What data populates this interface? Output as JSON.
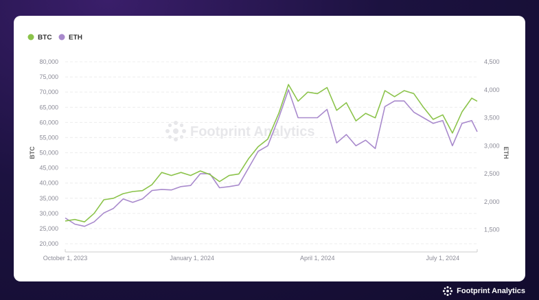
{
  "chart_data": {
    "type": "line",
    "title": "",
    "xlabel": "",
    "ylabel": "BTC",
    "y2label": "ETH",
    "legend_position": "top-left",
    "grid": true,
    "ylim": [
      20000,
      80000
    ],
    "y2lim": [
      1250,
      4500
    ],
    "y_ticks": [
      "20,000",
      "25,000",
      "30,000",
      "35,000",
      "40,000",
      "45,000",
      "50,000",
      "55,000",
      "60,000",
      "65,000",
      "70,000",
      "75,000",
      "80,000"
    ],
    "y2_ticks": [
      "1,500",
      "2,000",
      "2,500",
      "3,000",
      "3,500",
      "4,000",
      "4,500"
    ],
    "x_ticks": [
      "October 1, 2023",
      "January 1, 2024",
      "April 1, 2024",
      "July 1, 2024"
    ],
    "x_tick_dates": [
      "2023-10-01",
      "2024-01-01",
      "2024-04-01",
      "2024-07-01"
    ],
    "x_range": [
      "2023-10-01",
      "2024-07-26"
    ],
    "series": [
      {
        "name": "BTC",
        "axis": "left",
        "color": "#8bc34a",
        "points": [
          [
            "2023-10-01",
            27500
          ],
          [
            "2023-10-08",
            28000
          ],
          [
            "2023-10-15",
            27200
          ],
          [
            "2023-10-22",
            30000
          ],
          [
            "2023-10-29",
            34500
          ],
          [
            "2023-11-05",
            35000
          ],
          [
            "2023-11-12",
            36500
          ],
          [
            "2023-11-19",
            37200
          ],
          [
            "2023-11-26",
            37500
          ],
          [
            "2023-12-03",
            39500
          ],
          [
            "2023-12-10",
            43500
          ],
          [
            "2023-12-17",
            42500
          ],
          [
            "2023-12-24",
            43500
          ],
          [
            "2023-12-31",
            42500
          ],
          [
            "2024-01-07",
            44000
          ],
          [
            "2024-01-14",
            42800
          ],
          [
            "2024-01-21",
            40500
          ],
          [
            "2024-01-28",
            42500
          ],
          [
            "2024-02-04",
            43000
          ],
          [
            "2024-02-11",
            48000
          ],
          [
            "2024-02-18",
            52000
          ],
          [
            "2024-02-25",
            54500
          ],
          [
            "2024-03-04",
            63000
          ],
          [
            "2024-03-11",
            72500
          ],
          [
            "2024-03-18",
            67000
          ],
          [
            "2024-03-25",
            70000
          ],
          [
            "2024-04-01",
            69500
          ],
          [
            "2024-04-08",
            71500
          ],
          [
            "2024-04-15",
            64000
          ],
          [
            "2024-04-22",
            66500
          ],
          [
            "2024-04-29",
            60500
          ],
          [
            "2024-05-06",
            63000
          ],
          [
            "2024-05-13",
            61500
          ],
          [
            "2024-05-20",
            70500
          ],
          [
            "2024-05-27",
            68500
          ],
          [
            "2024-06-03",
            70500
          ],
          [
            "2024-06-10",
            69500
          ],
          [
            "2024-06-17",
            65000
          ],
          [
            "2024-06-24",
            61000
          ],
          [
            "2024-07-01",
            62500
          ],
          [
            "2024-07-08",
            56500
          ],
          [
            "2024-07-15",
            63500
          ],
          [
            "2024-07-22",
            68000
          ],
          [
            "2024-07-26",
            67000
          ]
        ]
      },
      {
        "name": "ETH",
        "axis": "right",
        "color": "#a889cc",
        "points": [
          [
            "2023-10-01",
            1710
          ],
          [
            "2023-10-08",
            1600
          ],
          [
            "2023-10-15",
            1560
          ],
          [
            "2023-10-22",
            1640
          ],
          [
            "2023-10-29",
            1800
          ],
          [
            "2023-11-05",
            1880
          ],
          [
            "2023-11-12",
            2050
          ],
          [
            "2023-11-19",
            1990
          ],
          [
            "2023-11-26",
            2050
          ],
          [
            "2023-12-03",
            2200
          ],
          [
            "2023-12-10",
            2220
          ],
          [
            "2023-12-17",
            2210
          ],
          [
            "2023-12-24",
            2270
          ],
          [
            "2023-12-31",
            2290
          ],
          [
            "2024-01-07",
            2500
          ],
          [
            "2024-01-14",
            2500
          ],
          [
            "2024-01-21",
            2250
          ],
          [
            "2024-01-28",
            2270
          ],
          [
            "2024-02-04",
            2300
          ],
          [
            "2024-02-11",
            2600
          ],
          [
            "2024-02-18",
            2900
          ],
          [
            "2024-02-25",
            3000
          ],
          [
            "2024-03-04",
            3500
          ],
          [
            "2024-03-11",
            4000
          ],
          [
            "2024-03-18",
            3500
          ],
          [
            "2024-03-25",
            3500
          ],
          [
            "2024-04-01",
            3500
          ],
          [
            "2024-04-08",
            3650
          ],
          [
            "2024-04-15",
            3050
          ],
          [
            "2024-04-22",
            3200
          ],
          [
            "2024-04-29",
            3000
          ],
          [
            "2024-05-06",
            3100
          ],
          [
            "2024-05-13",
            2950
          ],
          [
            "2024-05-20",
            3700
          ],
          [
            "2024-05-27",
            3800
          ],
          [
            "2024-06-03",
            3800
          ],
          [
            "2024-06-10",
            3600
          ],
          [
            "2024-06-17",
            3500
          ],
          [
            "2024-06-24",
            3400
          ],
          [
            "2024-07-01",
            3450
          ],
          [
            "2024-07-08",
            3000
          ],
          [
            "2024-07-15",
            3400
          ],
          [
            "2024-07-22",
            3450
          ],
          [
            "2024-07-26",
            3250
          ]
        ]
      }
    ]
  },
  "watermark": {
    "text": "Footprint Analytics"
  },
  "brand": {
    "text": "Footprint Analytics"
  },
  "colors": {
    "btc": "#8bc34a",
    "eth": "#a889cc",
    "grid": "#ececec",
    "axis": "#cccccc"
  }
}
